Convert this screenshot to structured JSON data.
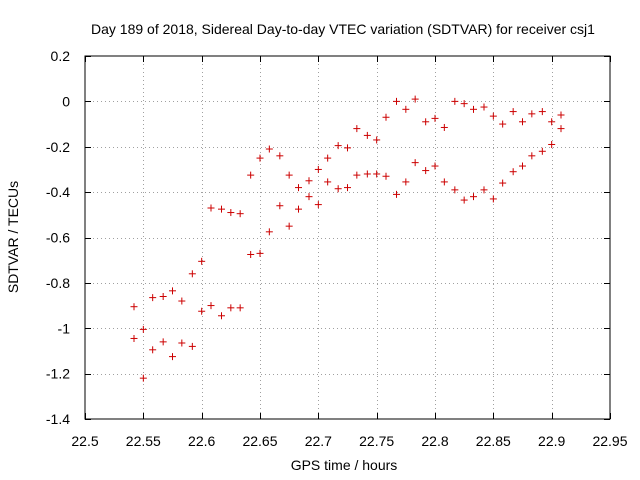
{
  "chart_data": {
    "type": "scatter",
    "title": "Day 189 of 2018, Sidereal Day-to-day VTEC variation (SDTVAR) for receiver csj1",
    "xlabel": "GPS time / hours",
    "ylabel": "SDTVAR / TECUs",
    "xlim": [
      22.5,
      22.95
    ],
    "ylim": [
      -1.4,
      0.2
    ],
    "xticks": [
      22.5,
      22.55,
      22.6,
      22.65,
      22.7,
      22.75,
      22.8,
      22.85,
      22.9,
      22.95
    ],
    "xtick_labels": [
      "22.5",
      "22.55",
      "22.6",
      "22.65",
      "22.7",
      "22.75",
      "22.8",
      "22.85",
      "22.9",
      "22.95"
    ],
    "yticks": [
      -1.4,
      -1.2,
      -1,
      -0.8,
      -0.6,
      -0.4,
      -0.2,
      0,
      0.2
    ],
    "ytick_labels": [
      "-1.4",
      "-1.2",
      "-1",
      "-0.8",
      "-0.6",
      "-0.4",
      "-0.2",
      "0",
      "0.2"
    ],
    "grid": true,
    "marker": "+",
    "marker_color": "#cc0000",
    "series": [
      {
        "name": "SDTVAR",
        "x": [
          22.542,
          22.55,
          22.558,
          22.567,
          22.575,
          22.583,
          22.592,
          22.6,
          22.608,
          22.617,
          22.625,
          22.633,
          22.642,
          22.65,
          22.658,
          22.667,
          22.675,
          22.683,
          22.692,
          22.7,
          22.708,
          22.717,
          22.725,
          22.733,
          22.742,
          22.75,
          22.758,
          22.767,
          22.775,
          22.783,
          22.792,
          22.8,
          22.808,
          22.817,
          22.825,
          22.833,
          22.842,
          22.85,
          22.858,
          22.867,
          22.875,
          22.883,
          22.892,
          22.9,
          22.908,
          22.542,
          22.55,
          22.558,
          22.567,
          22.575,
          22.583,
          22.592,
          22.6,
          22.608,
          22.617,
          22.625,
          22.633,
          22.642,
          22.65,
          22.658,
          22.667,
          22.675,
          22.683,
          22.692,
          22.7,
          22.708,
          22.717,
          22.725,
          22.733,
          22.742,
          22.75,
          22.758,
          22.767,
          22.775,
          22.783,
          22.792,
          22.8,
          22.808,
          22.817,
          22.825,
          22.833,
          22.842,
          22.85,
          22.858,
          22.867,
          22.875,
          22.883,
          22.892,
          22.9,
          22.908
        ],
        "y": [
          -0.905,
          -1.005,
          -0.865,
          -0.86,
          -0.835,
          -0.88,
          -0.76,
          -0.705,
          -0.47,
          -0.475,
          -0.49,
          -0.495,
          -0.325,
          -0.25,
          -0.21,
          -0.24,
          -0.325,
          -0.38,
          -0.35,
          -0.3,
          -0.25,
          -0.195,
          -0.205,
          -0.12,
          -0.15,
          -0.17,
          -0.07,
          0.0,
          -0.035,
          0.01,
          -0.09,
          -0.075,
          -0.115,
          0.0,
          -0.01,
          -0.035,
          -0.025,
          -0.065,
          -0.1,
          -0.045,
          -0.09,
          -0.055,
          -0.045,
          -0.09,
          -0.06,
          -1.045,
          -1.22,
          -1.095,
          -1.06,
          -1.125,
          -1.065,
          -1.08,
          -0.925,
          -0.9,
          -0.945,
          -0.91,
          -0.91,
          -0.675,
          -0.67,
          -0.575,
          -0.46,
          -0.55,
          -0.475,
          -0.42,
          -0.455,
          -0.355,
          -0.385,
          -0.38,
          -0.325,
          -0.32,
          -0.32,
          -0.33,
          -0.41,
          -0.355,
          -0.27,
          -0.305,
          -0.285,
          -0.355,
          -0.39,
          -0.435,
          -0.42,
          -0.39,
          -0.43,
          -0.36,
          -0.31,
          -0.285,
          -0.24,
          -0.22,
          -0.19,
          -0.12
        ]
      }
    ]
  }
}
